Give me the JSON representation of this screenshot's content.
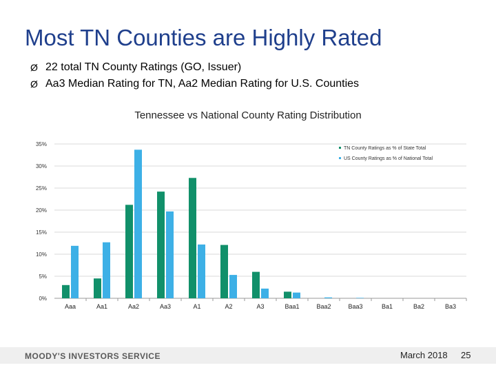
{
  "slide": {
    "title": "Most TN Counties are Highly Rated",
    "bullets": [
      "22 total TN County Ratings (GO, Issuer)",
      "Aa3 Median Rating for TN, Aa2 Median Rating for U.S. Counties"
    ],
    "bullet_glyph": "Ø"
  },
  "chart_data": {
    "type": "bar",
    "title": "Tennessee vs National County Rating Distribution",
    "categories": [
      "Aaa",
      "Aa1",
      "Aa2",
      "Aa3",
      "A1",
      "A2",
      "A3",
      "Baa1",
      "Baa2",
      "Baa3",
      "Ba1",
      "Ba2",
      "Ba3"
    ],
    "series": [
      {
        "name": "TN County Ratings as % of State Total",
        "color": "#11906a",
        "values": [
          3.0,
          4.5,
          21.2,
          24.2,
          27.3,
          12.1,
          6.0,
          1.5,
          0,
          0,
          0,
          0,
          0
        ]
      },
      {
        "name": "US County Ratings as % of National Total",
        "color": "#3db0e6",
        "values": [
          11.9,
          12.7,
          33.7,
          19.7,
          12.2,
          5.3,
          2.2,
          1.3,
          0.2,
          0.1,
          0,
          0,
          0
        ]
      }
    ],
    "ylim": [
      0,
      35
    ],
    "yticks": [
      0,
      5,
      10,
      15,
      20,
      25,
      30,
      35
    ],
    "ytick_labels": [
      "0%",
      "5%",
      "10%",
      "15%",
      "20%",
      "25%",
      "30%",
      "35%"
    ],
    "grid": true,
    "legend": "top-right"
  },
  "footer": {
    "brand": "MOODY'S INVESTORS SERVICE",
    "date": "March 2018",
    "page": "25"
  }
}
